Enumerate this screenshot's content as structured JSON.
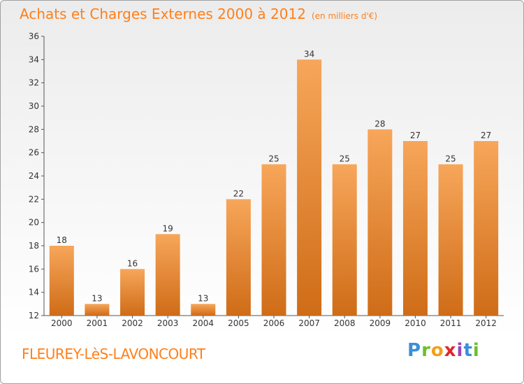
{
  "header": {
    "title": "Achats et Charges Externes 2000 à 2012",
    "unit": "(en milliers d'€)"
  },
  "footer": {
    "commune": "FLEUREY-LèS-LAVONCOURT",
    "logo_letters": [
      "P",
      "r",
      "o",
      "x",
      "i",
      "t",
      "i"
    ]
  },
  "colors": {
    "text_accent": "#ff7f1a",
    "bar_top": "#f7a65a",
    "bar_bottom": "#cf6c17"
  },
  "chart_data": {
    "type": "bar",
    "title": "Achats et Charges Externes 2000 à 2012",
    "subtitle": "(en milliers d'€)",
    "categories": [
      "2000",
      "2001",
      "2002",
      "2003",
      "2004",
      "2005",
      "2006",
      "2007",
      "2008",
      "2009",
      "2010",
      "2011",
      "2012"
    ],
    "values": [
      18,
      13,
      16,
      19,
      13,
      22,
      25,
      34,
      25,
      28,
      27,
      25,
      27
    ],
    "ylim": [
      12,
      36
    ],
    "yticks": [
      12,
      14,
      16,
      18,
      20,
      22,
      24,
      26,
      28,
      30,
      32,
      34,
      36
    ],
    "grid": false,
    "legend": "none"
  }
}
